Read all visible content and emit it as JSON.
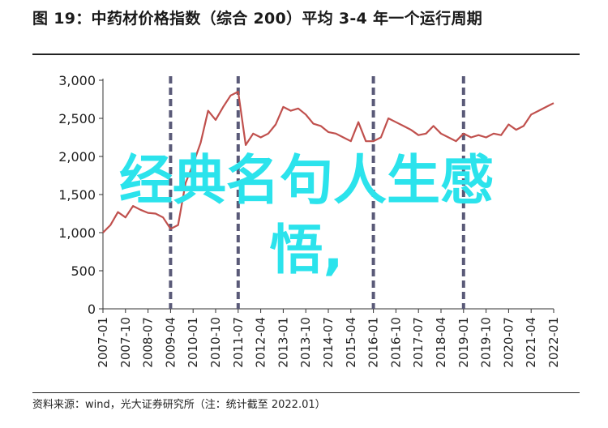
{
  "header": {
    "title": "图 19：中药材价格指数（综合 200）平均 3-4 年一个运行周期"
  },
  "footer": {
    "source": "资料来源：wind，光大证券研究所（注：统计截至 2022.01）"
  },
  "overlay": {
    "text": "经典名句人生感\n悟,"
  },
  "colors": {
    "line": "#c0504d",
    "cycle_marker": "#5a5a78",
    "overlay_text": "#2be3ec",
    "axis": "#333333"
  },
  "chart_data": {
    "type": "line",
    "title": "图 19：中药材价格指数（综合 200）平均 3-4 年一个运行周期",
    "xlabel": "",
    "ylabel": "",
    "ylim": [
      0,
      3000
    ],
    "yticks": [
      "0",
      "500",
      "1,000",
      "1,500",
      "2,000",
      "2,500",
      "3,000"
    ],
    "ytick_values": [
      0,
      500,
      1000,
      1500,
      2000,
      2500,
      3000
    ],
    "xticks": [
      "2007-01",
      "2007-10",
      "2008-07",
      "2009-04",
      "2010-01",
      "2010-10",
      "2011-07",
      "2012-04",
      "2013-01",
      "2013-10",
      "2014-07",
      "2015-04",
      "2016-01",
      "2016-10",
      "2017-07",
      "2018-04",
      "2019-01",
      "2019-10",
      "2020-07",
      "2021-04",
      "2022-01"
    ],
    "cycle_markers": [
      "2009-04",
      "2011-07",
      "2016-01",
      "2019-01"
    ],
    "grid": false,
    "legend": "none",
    "x": [
      "2007-01",
      "2007-04",
      "2007-07",
      "2007-10",
      "2008-01",
      "2008-04",
      "2008-07",
      "2008-10",
      "2009-01",
      "2009-04",
      "2009-07",
      "2009-10",
      "2010-01",
      "2010-04",
      "2010-07",
      "2010-10",
      "2011-01",
      "2011-04",
      "2011-07",
      "2011-10",
      "2012-01",
      "2012-04",
      "2012-07",
      "2012-10",
      "2013-01",
      "2013-04",
      "2013-07",
      "2013-10",
      "2014-01",
      "2014-04",
      "2014-07",
      "2014-10",
      "2015-01",
      "2015-04",
      "2015-07",
      "2015-10",
      "2016-01",
      "2016-04",
      "2016-07",
      "2016-10",
      "2017-01",
      "2017-04",
      "2017-07",
      "2017-10",
      "2018-01",
      "2018-04",
      "2018-07",
      "2018-10",
      "2019-01",
      "2019-04",
      "2019-07",
      "2019-10",
      "2020-01",
      "2020-04",
      "2020-07",
      "2020-10",
      "2021-01",
      "2021-04",
      "2021-07",
      "2021-10",
      "2022-01"
    ],
    "series": [
      {
        "values": [
          1000,
          1100,
          1270,
          1200,
          1350,
          1300,
          1260,
          1250,
          1200,
          1050,
          1100,
          1650,
          1900,
          2180,
          2600,
          2480,
          2650,
          2800,
          2850,
          2150,
          2300,
          2250,
          2300,
          2420,
          2650,
          2600,
          2630,
          2550,
          2430,
          2400,
          2320,
          2300,
          2250,
          2200,
          2450,
          2200,
          2200,
          2250,
          2500,
          2450,
          2400,
          2350,
          2280,
          2300,
          2400,
          2300,
          2250,
          2200,
          2300,
          2250,
          2280,
          2250,
          2300,
          2280,
          2420,
          2350,
          2400,
          2550,
          2600,
          2650,
          2700
        ]
      }
    ]
  }
}
